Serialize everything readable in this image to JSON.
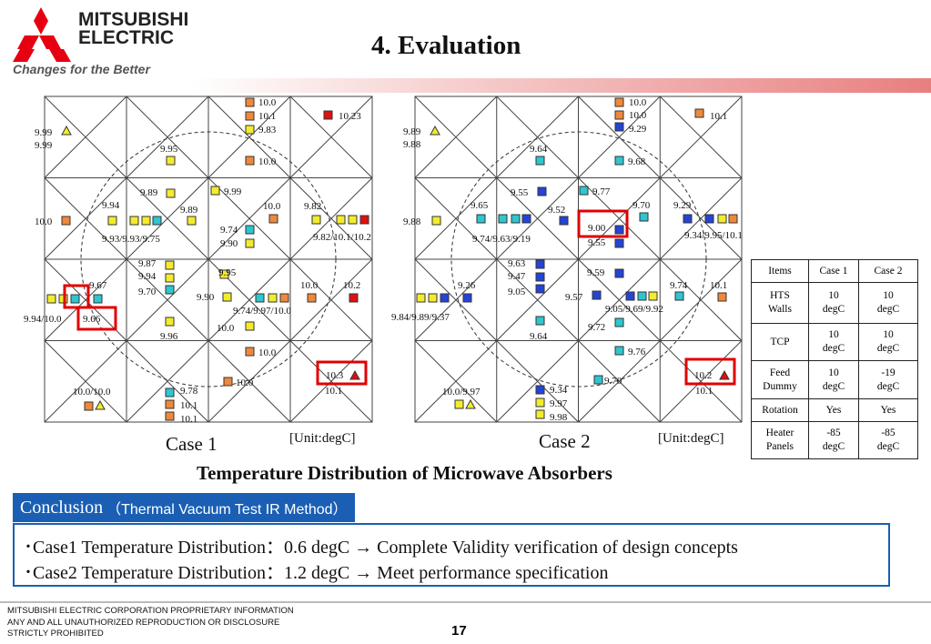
{
  "header": {
    "company_line1": "MITSUBISHI",
    "company_line2": "ELECTRIC",
    "tagline": "Changes for the Better",
    "title": "4. Evaluation"
  },
  "colors": {
    "logo_red": "#e60012",
    "accent_blue": "#1a5fb4",
    "highlight_red": "#e00000",
    "sq_orange": "#f0883a",
    "sq_yellow": "#f3ec2c",
    "sq_cyan": "#2ec6cf",
    "sq_blue": "#2444d8",
    "sq_red": "#e01010"
  },
  "case1": {
    "label": "Case 1",
    "unit": "[Unit:degC]",
    "texts": [
      {
        "t": "10.0"
      },
      {
        "t": "10.1"
      },
      {
        "t": "9.83"
      },
      {
        "t": "10.23"
      },
      {
        "t": "9.99"
      },
      {
        "t": "9.99"
      },
      {
        "t": "9.95"
      },
      {
        "t": "10.0"
      },
      {
        "t": "9.89"
      },
      {
        "t": "9.99"
      },
      {
        "t": "9.94"
      },
      {
        "t": "9.89"
      },
      {
        "t": "10.0"
      },
      {
        "t": "9.82"
      },
      {
        "t": "10.0"
      },
      {
        "t": "9.74"
      },
      {
        "t": "9.90"
      },
      {
        "t": "9.93/9.93/9.75"
      },
      {
        "t": "9.82/10.1/10.2"
      },
      {
        "t": "9.87"
      },
      {
        "t": "9.94"
      },
      {
        "t": "9.70"
      },
      {
        "t": "9.67"
      },
      {
        "t": "9.95"
      },
      {
        "t": "10.0"
      },
      {
        "t": "10.2"
      },
      {
        "t": "9.90"
      },
      {
        "t": "9.74/9.97/10.0"
      },
      {
        "t": "9.94/10.0"
      },
      {
        "t": "9.66"
      },
      {
        "t": "10.0"
      },
      {
        "t": "9.96"
      },
      {
        "t": "10.0"
      },
      {
        "t": "10.3"
      },
      {
        "t": "10.1"
      },
      {
        "t": "10.0"
      },
      {
        "t": "9.78"
      },
      {
        "t": "10.0/10.0"
      },
      {
        "t": "10.1"
      },
      {
        "t": "10.1"
      }
    ]
  },
  "case2": {
    "label": "Case 2",
    "unit": "[Unit:degC]",
    "texts": [
      {
        "t": "10.0"
      },
      {
        "t": "10.0"
      },
      {
        "t": "9.29"
      },
      {
        "t": "10.1"
      },
      {
        "t": "9.89"
      },
      {
        "t": "9.88"
      },
      {
        "t": "9.64"
      },
      {
        "t": "9.68"
      },
      {
        "t": "9.55"
      },
      {
        "t": "9.77"
      },
      {
        "t": "9.65"
      },
      {
        "t": "9.52"
      },
      {
        "t": "9.70"
      },
      {
        "t": "9.29"
      },
      {
        "t": "9.88"
      },
      {
        "t": "9.00"
      },
      {
        "t": "9.55"
      },
      {
        "t": "9.74/9.63/9.19"
      },
      {
        "t": "9.34/9.95/10.1"
      },
      {
        "t": "9.63"
      },
      {
        "t": "9.47"
      },
      {
        "t": "9.05"
      },
      {
        "t": "9.26"
      },
      {
        "t": "9.59"
      },
      {
        "t": "9.74"
      },
      {
        "t": "10.1"
      },
      {
        "t": "9.57"
      },
      {
        "t": "9.05/9.69/9.92"
      },
      {
        "t": "9.84/9.89/9.37"
      },
      {
        "t": "9.72"
      },
      {
        "t": "9.64"
      },
      {
        "t": "9.76"
      },
      {
        "t": "9.70"
      },
      {
        "t": "10.2"
      },
      {
        "t": "10.1"
      },
      {
        "t": "9.34"
      },
      {
        "t": "9.97"
      },
      {
        "t": "9.98"
      },
      {
        "t": "10.0/9.97"
      }
    ]
  },
  "figure_caption": "Temperature Distribution of Microwave Absorbers",
  "table": {
    "header": [
      "Items",
      "Case 1",
      "Case 2"
    ],
    "rows": [
      [
        "HTS\nWalls",
        "10\ndegC",
        "10\ndegC"
      ],
      [
        "TCP",
        "10\ndegC",
        "10\ndegC"
      ],
      [
        "Feed\nDummy",
        "10\ndegC",
        "-19\ndegC"
      ],
      [
        "Rotation",
        "Yes",
        "Yes"
      ],
      [
        "Heater\nPanels",
        "-85\ndegC",
        "-85\ndegC"
      ]
    ]
  },
  "conclusion": {
    "tab_big": "Conclusion",
    "tab_small": "（Thermal Vacuum Test IR Method）",
    "line1": "･Case1 Temperature Distribution：0.6 degC → Complete Validity verification of design concepts",
    "line2": "･Case2 Temperature Distribution：1.2 degC  → Meet performance specification"
  },
  "footer": {
    "line1": "MITSUBISHI ELECTRIC CORPORATION  PROPRIETARY INFORMATION",
    "line2": "ANY AND ALL UNAUTHORIZED  REPRODUCTION OR DISCLOSURE",
    "line3": "STRICTLY PROHIBITED",
    "page": "17"
  }
}
